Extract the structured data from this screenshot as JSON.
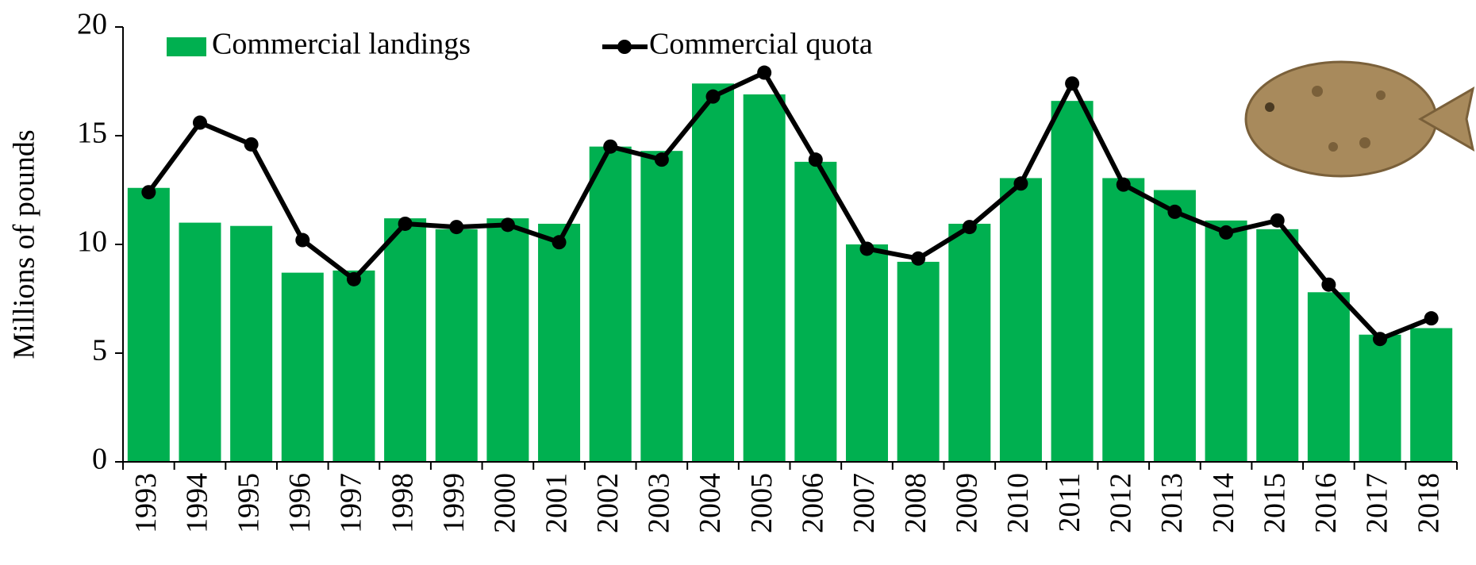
{
  "chart_data": {
    "type": "bar_line",
    "y_label": "Millions of pounds",
    "categories": [
      "1993",
      "1994",
      "1995",
      "1996",
      "1997",
      "1998",
      "1999",
      "2000",
      "2001",
      "2002",
      "2003",
      "2004",
      "2005",
      "2006",
      "2007",
      "2008",
      "2009",
      "2010",
      "2011",
      "2012",
      "2013",
      "2014",
      "2015",
      "2016",
      "2017",
      "2018"
    ],
    "series": [
      {
        "name": "Commercial landings",
        "type": "bar",
        "color": "#00b050",
        "values": [
          12.6,
          11.0,
          10.85,
          8.7,
          8.8,
          11.2,
          10.7,
          11.2,
          10.95,
          14.5,
          14.3,
          17.4,
          16.9,
          13.8,
          10.0,
          9.2,
          10.95,
          13.05,
          16.6,
          13.05,
          12.5,
          11.1,
          10.7,
          7.8,
          5.85,
          6.15
        ]
      },
      {
        "name": "Commercial quota",
        "type": "line",
        "color": "#000000",
        "values": [
          12.4,
          15.6,
          14.6,
          10.2,
          8.4,
          10.95,
          10.8,
          10.9,
          10.1,
          14.5,
          13.9,
          16.8,
          17.9,
          13.9,
          9.8,
          9.35,
          10.8,
          12.8,
          17.4,
          12.75,
          11.5,
          10.55,
          11.1,
          8.15,
          5.65,
          6.6
        ]
      }
    ],
    "ylim": [
      0,
      20
    ],
    "yticks": [
      0,
      5,
      10,
      15,
      20
    ],
    "grid": false,
    "legend": "upper left"
  }
}
